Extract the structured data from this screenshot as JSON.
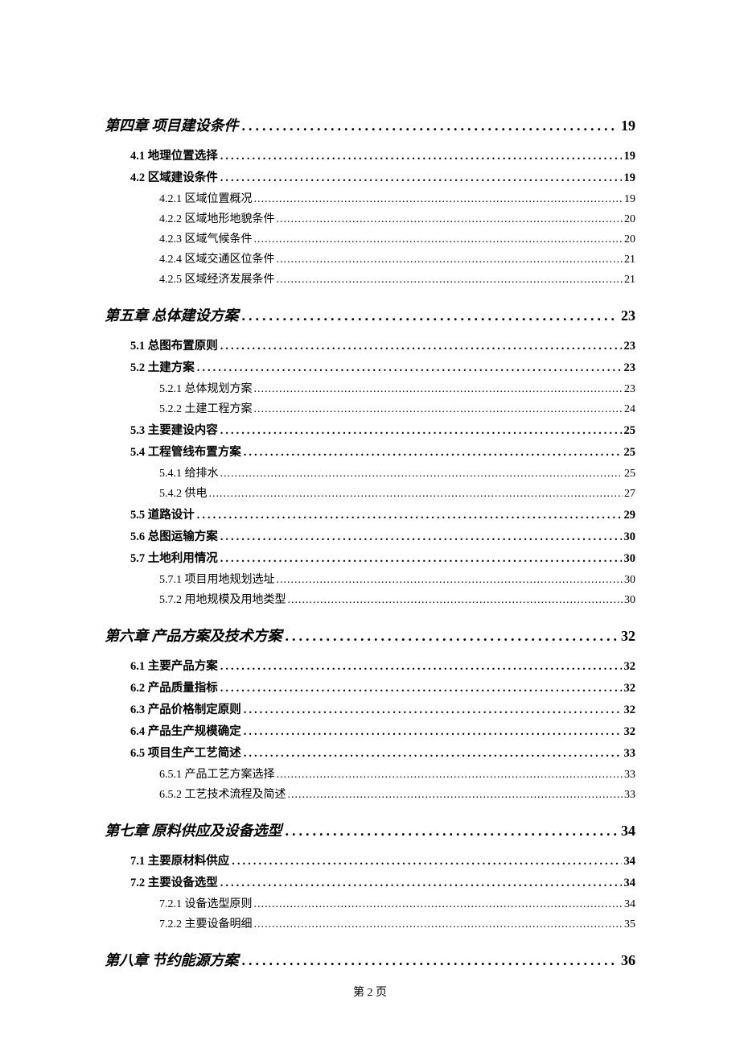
{
  "chapters": [
    {
      "title": "第四章 项目建设条件",
      "page": "19",
      "sections": [
        {
          "title": "4.1 地理位置选择",
          "page": "19",
          "subs": []
        },
        {
          "title": "4.2 区域建设条件",
          "page": "19",
          "subs": [
            {
              "title": "4.2.1 区域位置概况",
              "page": "19"
            },
            {
              "title": "4.2.2 区域地形地貌条件",
              "page": "20"
            },
            {
              "title": "4.2.3 区域气候条件",
              "page": "20"
            },
            {
              "title": "4.2.4 区域交通区位条件",
              "page": "21"
            },
            {
              "title": "4.2.5 区域经济发展条件",
              "page": "21"
            }
          ]
        }
      ]
    },
    {
      "title": "第五章 总体建设方案",
      "page": "23",
      "sections": [
        {
          "title": "5.1 总图布置原则",
          "page": "23",
          "subs": []
        },
        {
          "title": "5.2 土建方案",
          "page": "23",
          "subs": [
            {
              "title": "5.2.1 总体规划方案",
              "page": "23"
            },
            {
              "title": "5.2.2 土建工程方案",
              "page": "24"
            }
          ]
        },
        {
          "title": "5.3 主要建设内容",
          "page": "25",
          "subs": []
        },
        {
          "title": "5.4 工程管线布置方案",
          "page": "25",
          "subs": [
            {
              "title": "5.4.1 给排水",
              "page": "25"
            },
            {
              "title": "5.4.2 供电",
              "page": "27"
            }
          ]
        },
        {
          "title": "5.5 道路设计",
          "page": "29",
          "subs": []
        },
        {
          "title": "5.6 总图运输方案",
          "page": "30",
          "subs": []
        },
        {
          "title": "5.7 土地利用情况",
          "page": "30",
          "subs": [
            {
              "title": "5.7.1 项目用地规划选址",
              "page": "30"
            },
            {
              "title": "5.7.2 用地规模及用地类型",
              "page": "30"
            }
          ]
        }
      ]
    },
    {
      "title": "第六章 产品方案及技术方案",
      "page": "32",
      "sections": [
        {
          "title": "6.1 主要产品方案",
          "page": "32",
          "subs": []
        },
        {
          "title": "6.2 产品质量指标",
          "page": "32",
          "subs": []
        },
        {
          "title": "6.3 产品价格制定原则",
          "page": "32",
          "subs": []
        },
        {
          "title": "6.4 产品生产规模确定",
          "page": "32",
          "subs": []
        },
        {
          "title": "6.5 项目生产工艺简述",
          "page": "33",
          "subs": [
            {
              "title": "6.5.1 产品工艺方案选择",
              "page": "33"
            },
            {
              "title": "6.5.2 工艺技术流程及简述",
              "page": "33"
            }
          ]
        }
      ]
    },
    {
      "title": "第七章 原料供应及设备选型",
      "page": "34",
      "sections": [
        {
          "title": "7.1 主要原材料供应",
          "page": "34",
          "subs": []
        },
        {
          "title": "7.2 主要设备选型",
          "page": "34",
          "subs": [
            {
              "title": "7.2.1 设备选型原则",
              "page": "34"
            },
            {
              "title": "7.2.2 主要设备明细",
              "page": "35"
            }
          ]
        }
      ]
    },
    {
      "title": "第八章 节约能源方案",
      "page": "36",
      "sections": []
    }
  ],
  "footer": "第 2 页"
}
